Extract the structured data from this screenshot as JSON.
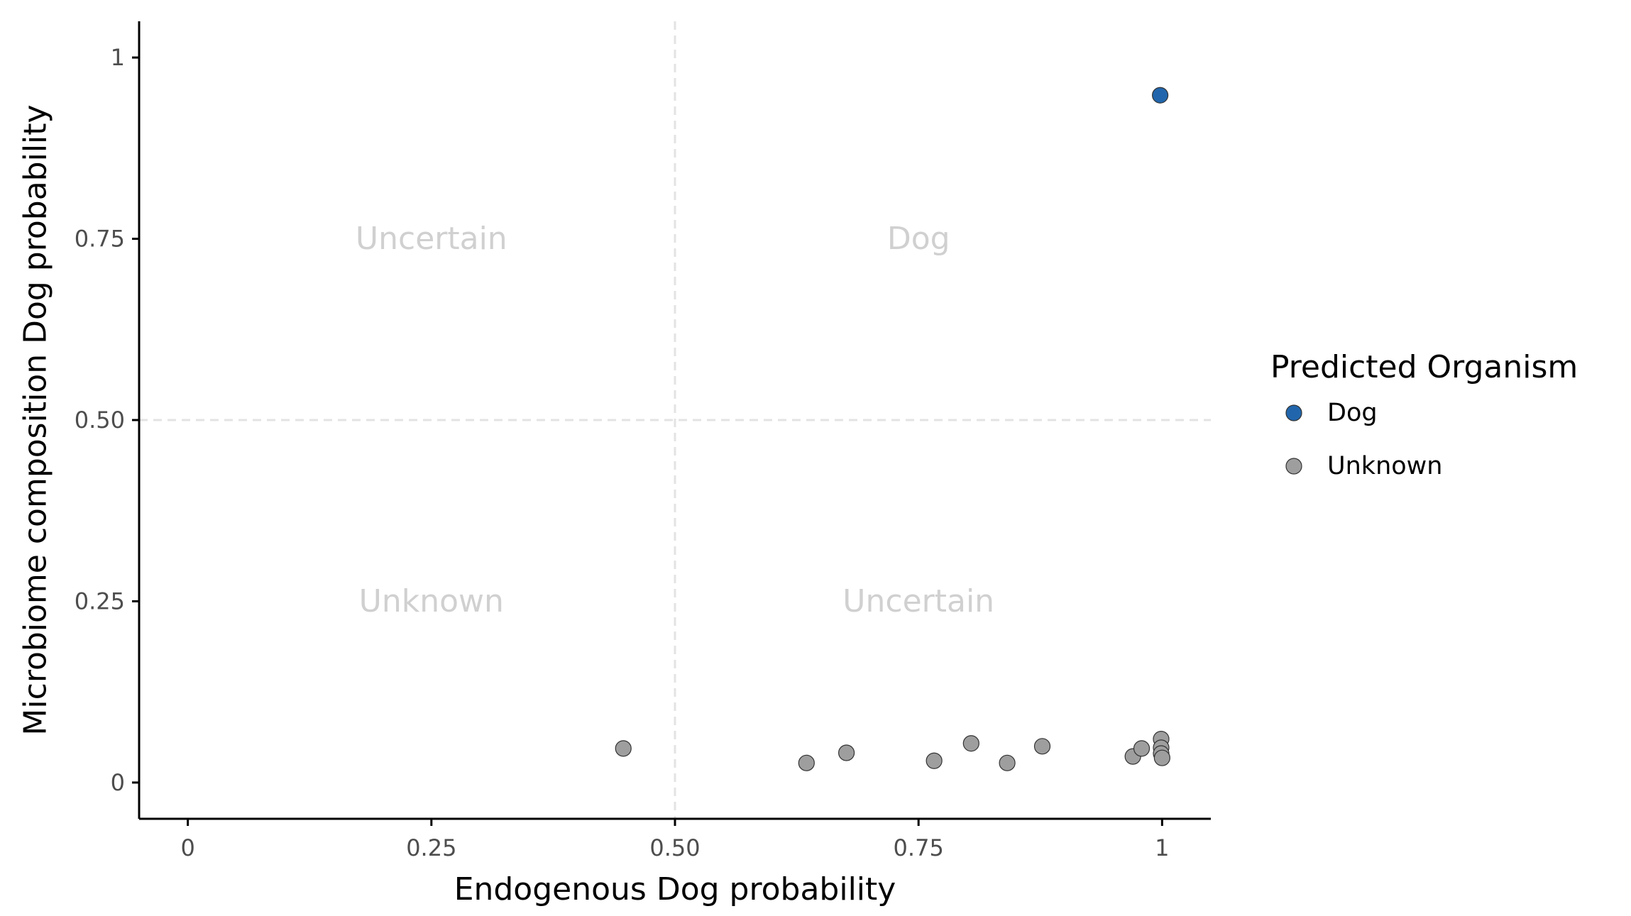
{
  "chart_data": {
    "type": "scatter",
    "xlabel": "Endogenous Dog probability",
    "ylabel": "Microbiome composition Dog probability",
    "xlim": [
      -0.05,
      1.05
    ],
    "ylim": [
      -0.05,
      1.05
    ],
    "x_ticks": [
      0,
      0.25,
      0.5,
      0.75,
      1
    ],
    "x_tick_labels": [
      "0",
      "0.25",
      "0.50",
      "0.75",
      "1"
    ],
    "y_ticks": [
      0,
      0.25,
      0.5,
      0.75,
      1
    ],
    "y_tick_labels": [
      "0",
      "0.25",
      "0.50",
      "0.75",
      "1"
    ],
    "grid": false,
    "reference_lines": {
      "x": 0.5,
      "y": 0.5,
      "style": "dashed"
    },
    "quadrant_labels": [
      {
        "text": "Uncertain",
        "x": 0.25,
        "y": 0.75
      },
      {
        "text": "Dog",
        "x": 0.75,
        "y": 0.75
      },
      {
        "text": "Unknown",
        "x": 0.25,
        "y": 0.25
      },
      {
        "text": "Uncertain",
        "x": 0.75,
        "y": 0.25
      }
    ],
    "legend": {
      "title": "Predicted Organism",
      "placement": "right",
      "entries": [
        {
          "name": "Dog",
          "color": "#2166ac"
        },
        {
          "name": "Unknown",
          "color": "#9e9e9e"
        }
      ]
    },
    "series": [
      {
        "name": "Dog",
        "color": "#2166ac",
        "points": [
          {
            "x": 0.998,
            "y": 0.948
          }
        ]
      },
      {
        "name": "Unknown",
        "color": "#9e9e9e",
        "points": [
          {
            "x": 0.447,
            "y": 0.047
          },
          {
            "x": 0.635,
            "y": 0.027
          },
          {
            "x": 0.676,
            "y": 0.041
          },
          {
            "x": 0.766,
            "y": 0.03
          },
          {
            "x": 0.804,
            "y": 0.054
          },
          {
            "x": 0.841,
            "y": 0.027
          },
          {
            "x": 0.877,
            "y": 0.05
          },
          {
            "x": 0.97,
            "y": 0.036
          },
          {
            "x": 0.979,
            "y": 0.047
          },
          {
            "x": 0.999,
            "y": 0.06
          },
          {
            "x": 0.999,
            "y": 0.048
          },
          {
            "x": 0.999,
            "y": 0.04
          },
          {
            "x": 1.0,
            "y": 0.034
          }
        ]
      }
    ]
  }
}
